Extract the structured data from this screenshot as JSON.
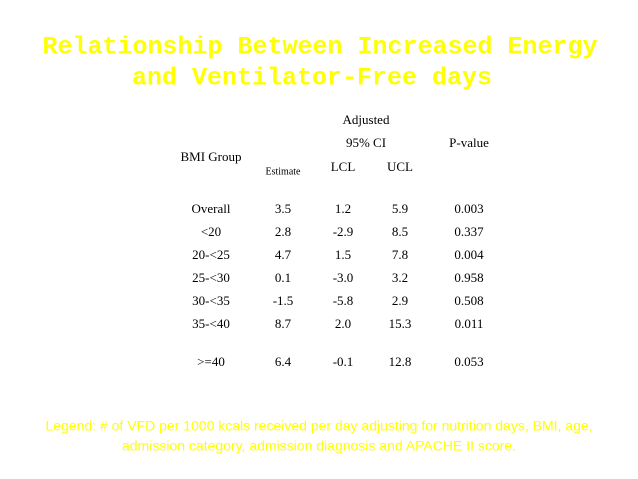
{
  "header": {
    "title_lines": [
      "Relationship Between Increased Energy",
      "and Ventilator-Free days"
    ]
  },
  "table": {
    "group_header": "Adjusted",
    "ci_header": "95% CI",
    "columns": [
      "BMI Group",
      "Estimate",
      "LCL",
      "UCL",
      "P-value"
    ],
    "rows": [
      [
        "Overall",
        "3.5",
        "1.2",
        "5.9",
        "0.003"
      ],
      [
        "<20",
        "2.8",
        "-2.9",
        "8.5",
        "0.337"
      ],
      [
        "20-<25",
        "4.7",
        "1.5",
        "7.8",
        "0.004"
      ],
      [
        "25-<30",
        "0.1",
        "-3.0",
        "3.2",
        "0.958"
      ],
      [
        "30-<35",
        "-1.5",
        "-5.8",
        "2.9",
        "0.508"
      ],
      [
        "35-<40",
        "8.7",
        "2.0",
        "15.3",
        "0.011"
      ],
      [
        ">=40",
        "6.4",
        "-0.1",
        "12.8",
        "0.053"
      ]
    ]
  },
  "legend": {
    "lines": [
      "Legend: # of VFD per 1000 kcals received per day adjusting for nutrition days, BMI, age,",
      "admission category, admission diagnosis and APACHE II score."
    ]
  }
}
